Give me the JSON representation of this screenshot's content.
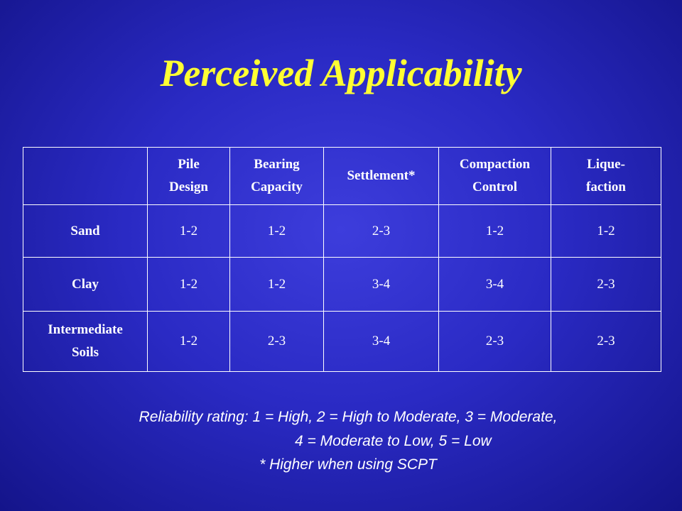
{
  "title": "Perceived Applicability",
  "table": {
    "columns": [
      [
        "Pile",
        "Design"
      ],
      [
        "Bearing",
        "Capacity"
      ],
      [
        "Settlement*"
      ],
      [
        "Compaction",
        "Control"
      ],
      [
        "Lique-",
        "faction"
      ]
    ],
    "rows": [
      {
        "label": [
          "Sand"
        ],
        "values": [
          "1-2",
          "1-2",
          "2-3",
          "1-2",
          "1-2"
        ]
      },
      {
        "label": [
          "Clay"
        ],
        "values": [
          "1-2",
          "1-2",
          "3-4",
          "3-4",
          "2-3"
        ]
      },
      {
        "label": [
          "Intermediate",
          "Soils"
        ],
        "values": [
          "1-2",
          "2-3",
          "3-4",
          "2-3",
          "2-3"
        ]
      }
    ]
  },
  "notes": [
    "Reliability rating: 1 = High, 2 = High to Moderate, 3 = Moderate,",
    "4 = Moderate to Low, 5 = Low",
    "* Higher when using SCPT"
  ]
}
